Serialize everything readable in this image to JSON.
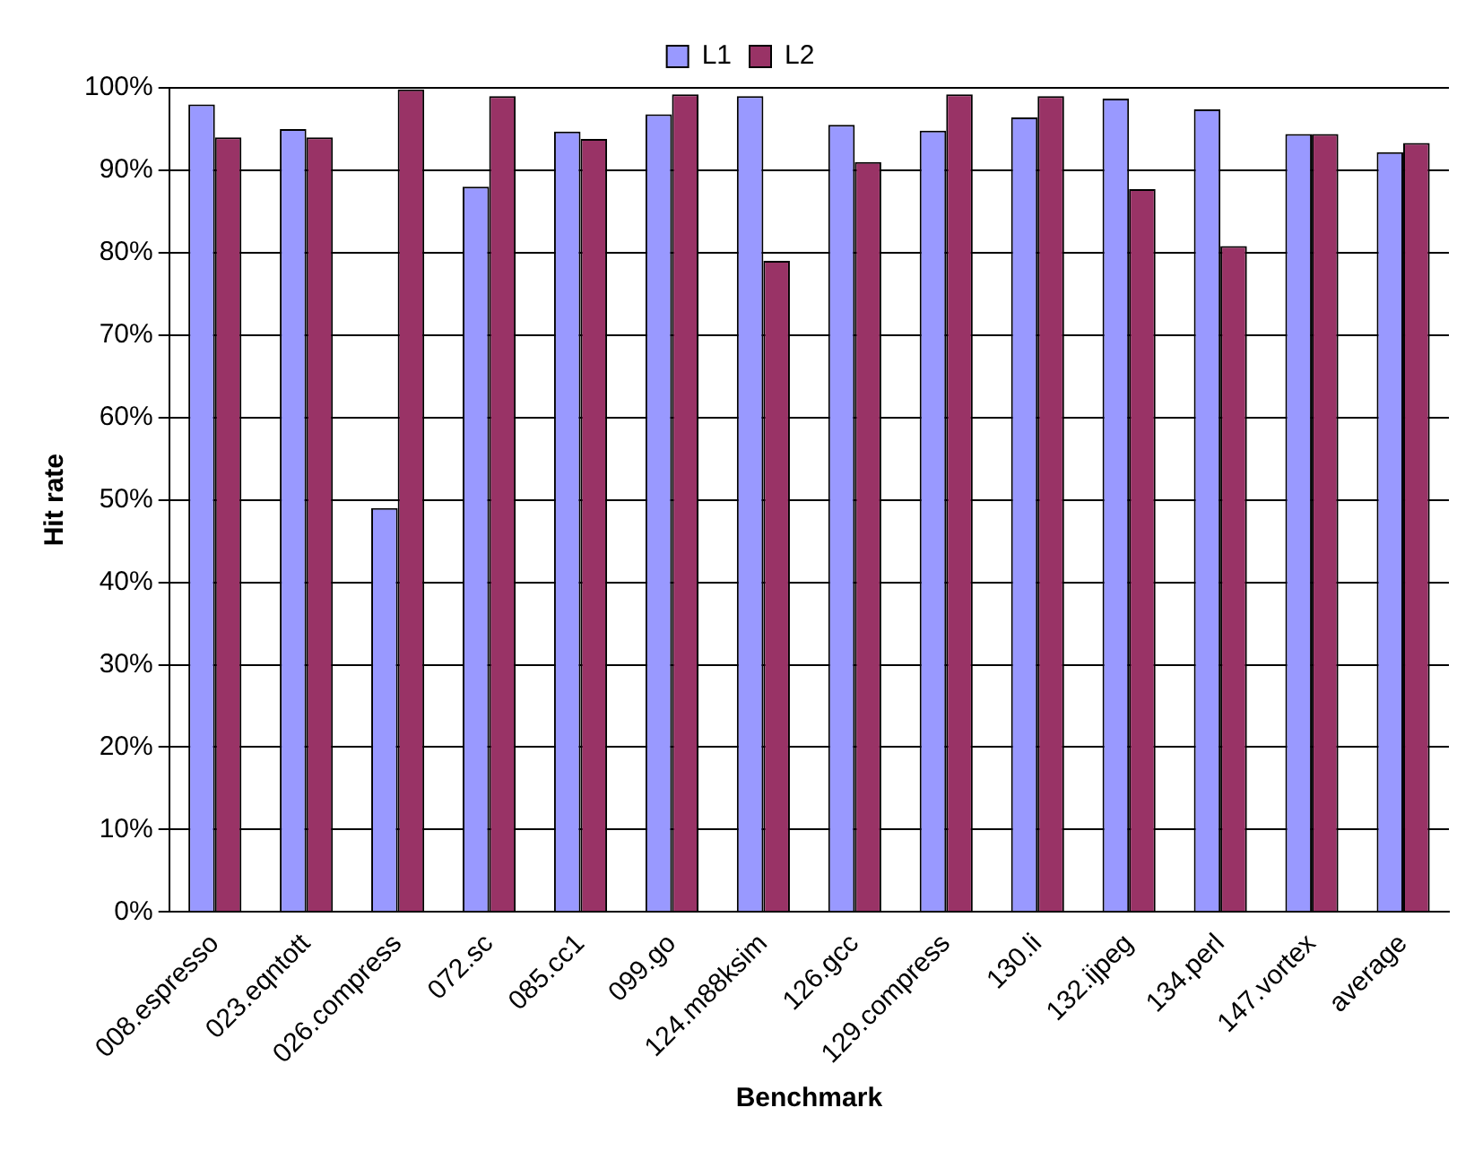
{
  "chart_data": {
    "type": "bar",
    "xlabel": "Benchmark",
    "ylabel": "Hit rate",
    "categories": [
      "008.espresso",
      "023.eqntott",
      "026.compress",
      "072.sc",
      "085.cc1",
      "099.go",
      "124.m88ksim",
      "126.gcc",
      "129.compress",
      "130.li",
      "132.ijpeg",
      "134.perl",
      "147.vortex",
      "average"
    ],
    "series": [
      {
        "name": "L1",
        "color": "#9999ff",
        "values": [
          98,
          95,
          49,
          88,
          94.7,
          96.8,
          99,
          95.5,
          94.8,
          96.4,
          98.7,
          97.4,
          94.4,
          92.2
        ]
      },
      {
        "name": "L2",
        "color": "#993366",
        "values": [
          94,
          94,
          99.8,
          99,
          93.8,
          99.2,
          79,
          91,
          99.2,
          99,
          87.7,
          80.8,
          94.4,
          93.3
        ]
      }
    ],
    "ylim": [
      0,
      100
    ],
    "yticks": [
      {
        "value": 0,
        "label": "0%"
      },
      {
        "value": 10,
        "label": "10%"
      },
      {
        "value": 20,
        "label": "20%"
      },
      {
        "value": 30,
        "label": "30%"
      },
      {
        "value": 40,
        "label": "40%"
      },
      {
        "value": 50,
        "label": "50%"
      },
      {
        "value": 60,
        "label": "60%"
      },
      {
        "value": 70,
        "label": "70%"
      },
      {
        "value": 80,
        "label": "80%"
      },
      {
        "value": 90,
        "label": "90%"
      },
      {
        "value": 100,
        "label": "100%"
      }
    ],
    "grid": "y",
    "legend": "top"
  }
}
